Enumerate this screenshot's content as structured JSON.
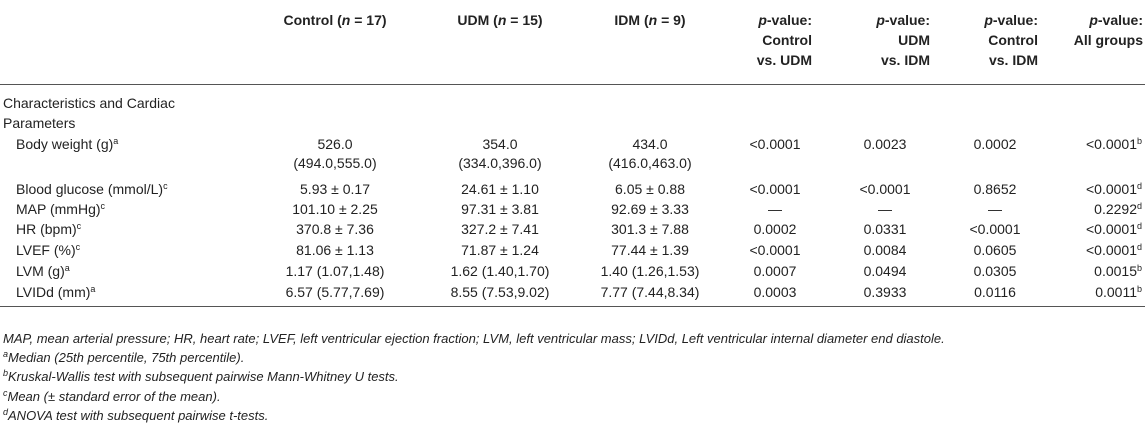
{
  "header": {
    "control": {
      "pre": "Control (",
      "n": "n",
      "post": " = 17)"
    },
    "udm": {
      "pre": "UDM (",
      "n": "n",
      "post": " = 15)"
    },
    "idm": {
      "pre": "IDM (",
      "n": "n",
      "post": " = 9)"
    },
    "p1": {
      "p": "p",
      "l1": "-value:",
      "l2": "Control",
      "l3": "vs. UDM"
    },
    "p2": {
      "p": "p",
      "l1": "-value:",
      "l2": "UDM",
      "l3": "vs. IDM"
    },
    "p3": {
      "p": "p",
      "l1": "-value:",
      "l2": "Control",
      "l3": "vs. IDM"
    },
    "p4": {
      "p": "p",
      "l1": "-value:",
      "l2": "All groups"
    }
  },
  "section": {
    "line1": "Characteristics and Cardiac",
    "line2": "Parameters"
  },
  "rows": [
    {
      "label": "Body weight (g)",
      "sup": "a",
      "control": "526.0",
      "control2": "(494.0,555.0)",
      "udm": "354.0",
      "udm2": "(334.0,396.0)",
      "idm": "434.0",
      "idm2": "(416.0,463.0)",
      "p1": "<0.0001",
      "p2": "0.0023",
      "p3": "0.0002",
      "p4": "<0.0001",
      "p4sup": "b"
    },
    {
      "label": "Blood glucose (mmol/L)",
      "sup": "c",
      "control": "5.93 ± 0.17",
      "udm": "24.61 ± 1.10",
      "idm": "6.05 ± 0.88",
      "p1": "<0.0001",
      "p2": "<0.0001",
      "p3": "0.8652",
      "p4": "<0.0001",
      "p4sup": "d"
    },
    {
      "label": "MAP (mmHg)",
      "sup": "c",
      "control": "101.10 ± 2.25",
      "udm": "97.31 ± 3.81",
      "idm": "92.69 ± 3.33",
      "p1": "—",
      "p2": "—",
      "p3": "—",
      "p4": "0.2292",
      "p4sup": "d"
    },
    {
      "label": "HR (bpm)",
      "sup": "c",
      "control": "370.8 ± 7.36",
      "udm": "327.2 ± 7.41",
      "idm": "301.3 ± 7.88",
      "p1": "0.0002",
      "p2": "0.0331",
      "p3": "<0.0001",
      "p4": "<0.0001",
      "p4sup": "d"
    },
    {
      "label": "LVEF (%)",
      "sup": "c",
      "control": "81.06 ± 1.13",
      "udm": "71.87 ± 1.24",
      "idm": "77.44 ± 1.39",
      "p1": "<0.0001",
      "p2": "0.0084",
      "p3": "0.0605",
      "p4": "<0.0001",
      "p4sup": "d"
    },
    {
      "label": "LVM (g)",
      "sup": "a",
      "control": "1.17 (1.07,1.48)",
      "udm": "1.62 (1.40,1.70)",
      "idm": "1.40 (1.26,1.53)",
      "p1": "0.0007",
      "p2": "0.0494",
      "p3": "0.0305",
      "p4": "0.0015",
      "p4sup": "b"
    },
    {
      "label": "LVIDd (mm)",
      "sup": "a",
      "control": "6.57 (5.77,7.69)",
      "udm": "8.55 (7.53,9.02)",
      "idm": "7.77 (7.44,8.34)",
      "p1": "0.0003",
      "p2": "0.3933",
      "p3": "0.0116",
      "p4": "0.0011",
      "p4sup": "b"
    }
  ],
  "notes": {
    "abbrev": "MAP, mean arterial pressure; HR, heart rate; LVEF, left ventricular ejection fraction; LVM, left ventricular mass; LVIDd, Left ventricular internal diameter end diastole.",
    "a": {
      "sup": "a",
      "text": "Median (25th percentile, 75th percentile)."
    },
    "b": {
      "sup": "b",
      "text": "Kruskal-Wallis test with subsequent pairwise Mann-Whitney U tests."
    },
    "c": {
      "sup": "c",
      "text": "Mean (± standard error of the mean)."
    },
    "d": {
      "sup": "d",
      "text": "ANOVA test with subsequent pairwise t-tests."
    }
  }
}
